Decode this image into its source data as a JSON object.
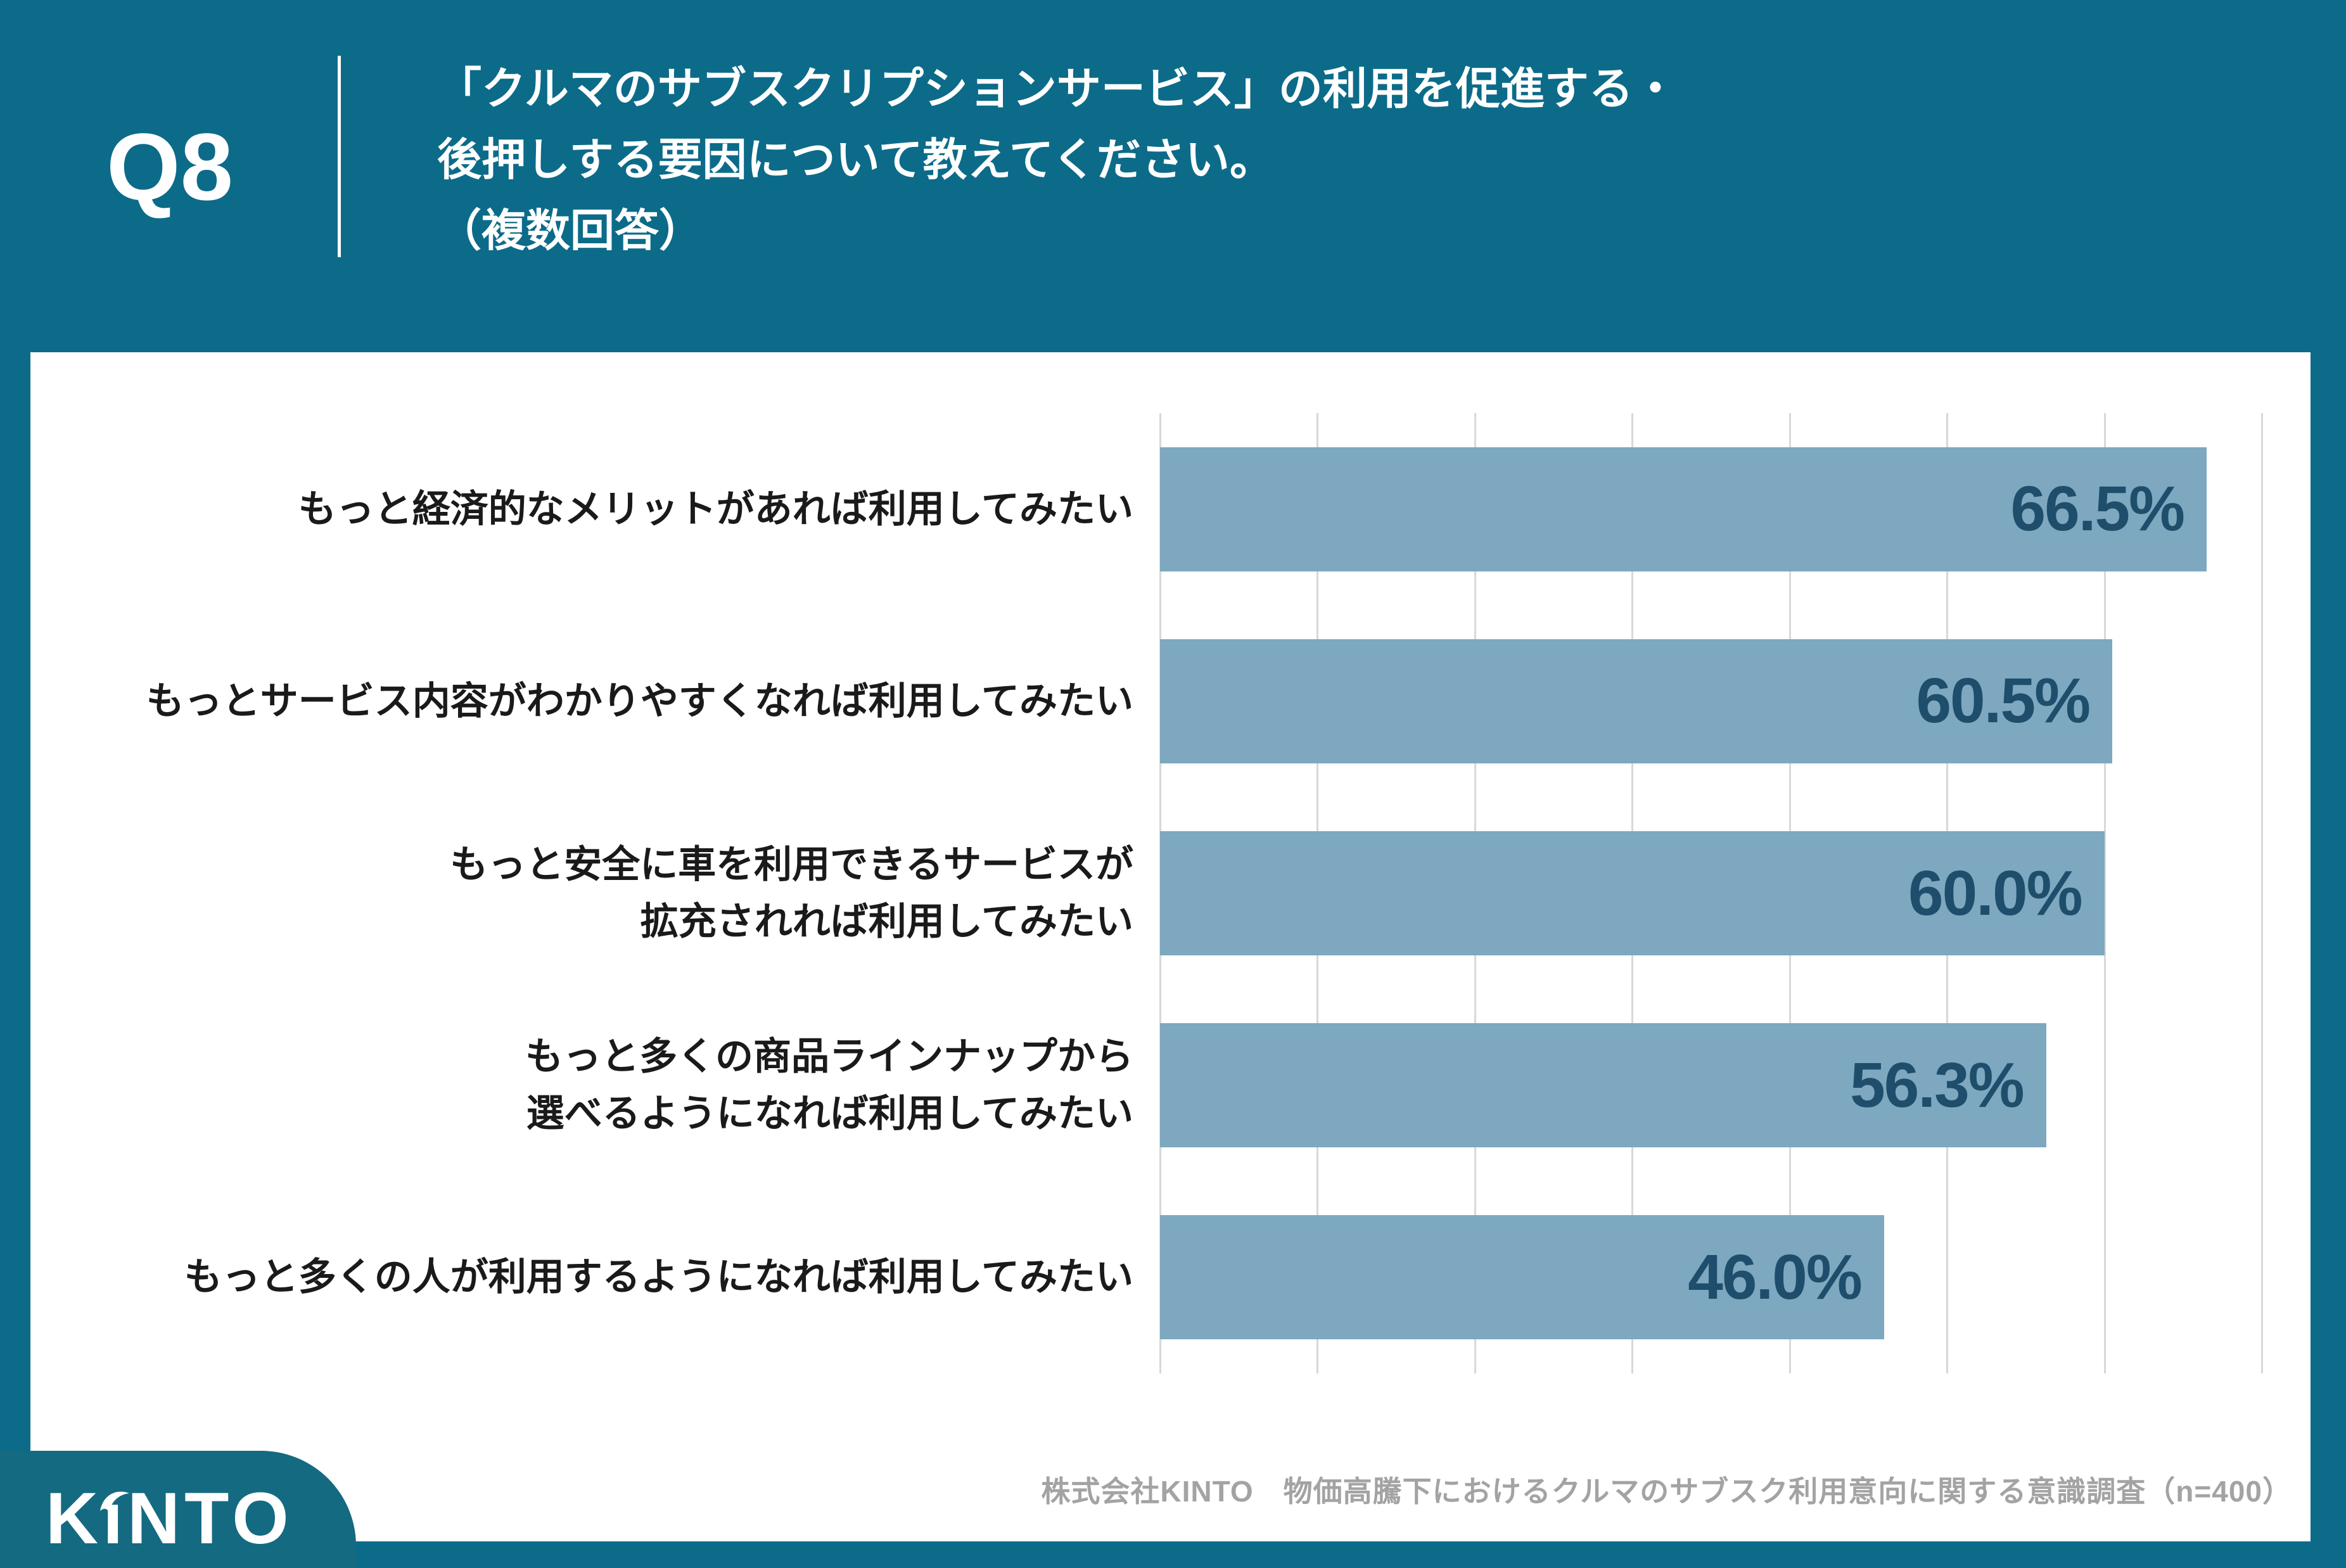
{
  "header": {
    "question_no": "Q8",
    "title": "「クルマのサブスクリプションサービス」の利用を促進する・\n後押しする要因について教えてください。\n（複数回答）"
  },
  "chart_data": {
    "type": "bar",
    "orientation": "horizontal",
    "title": "",
    "xlabel": "",
    "ylabel": "",
    "xlim": [
      0,
      70
    ],
    "gridline_interval": 10,
    "grid": true,
    "legend": false,
    "categories": [
      "もっと経済的なメリットがあれば利用してみたい",
      "もっとサービス内容がわかりやすくなれば利用してみたい",
      "もっと安全に車を利用できるサービスが\n拡充されれば利用してみたい",
      "もっと多くの商品ラインナップから\n選べるようになれば利用してみたい",
      "もっと多くの人が利用するようになれば利用してみたい"
    ],
    "values": [
      66.5,
      60.5,
      60.0,
      56.3,
      46.0
    ],
    "value_labels": [
      "66.5%",
      "60.5%",
      "60.0%",
      "56.3%",
      "46.0%"
    ],
    "bar_color": "#7da8bf",
    "value_label_color": "#1e4e6b"
  },
  "footer": {
    "logo_text_k": "K",
    "logo_text_i": "ı",
    "logo_text_nto": "NTO",
    "logo_name": "KINTO",
    "source": "株式会社KINTO　物価高騰下におけるクルマのサブスク利用意向に関する意識調査（n=400）"
  },
  "colors": {
    "frame_teal": "#0c6b89",
    "logo_teal": "#146a81",
    "bar": "#7da8bf",
    "value_text": "#1e4e6b",
    "gridline": "#d8d8d8",
    "category_text": "#1a1a1a",
    "source_text": "#a3a3a3"
  }
}
